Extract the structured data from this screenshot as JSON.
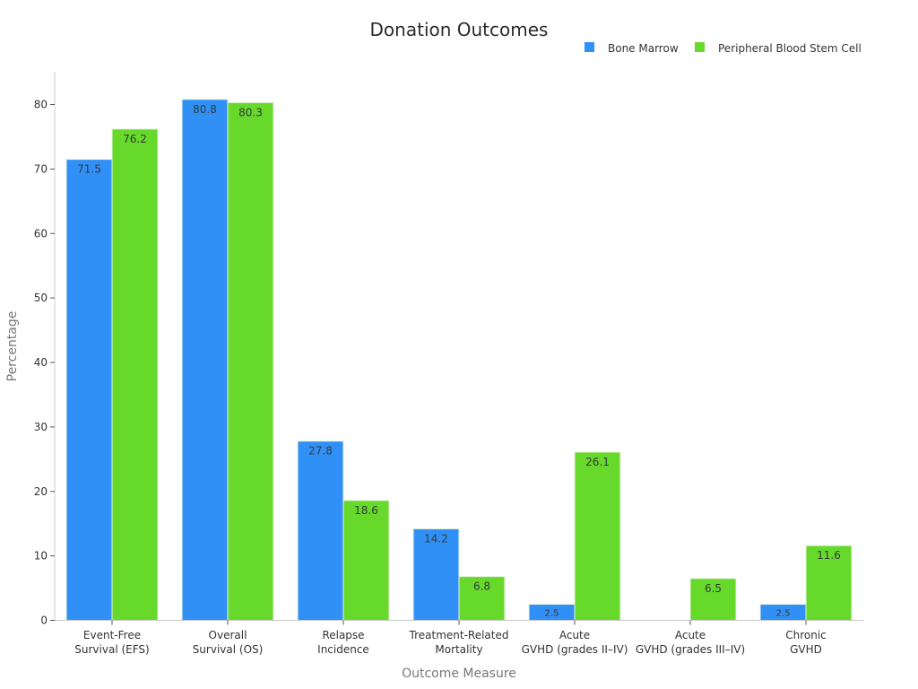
{
  "chart_data": {
    "type": "bar",
    "title": "Donation Outcomes",
    "xlabel": "Outcome Measure",
    "ylabel": "Percentage",
    "ylim": [
      0,
      85
    ],
    "yticks": [
      0,
      10,
      20,
      30,
      40,
      50,
      60,
      70,
      80
    ],
    "grid": false,
    "legend_position": "top-right",
    "categories": [
      [
        "Event-Free",
        "Survival (EFS)"
      ],
      [
        "Overall",
        "Survival (OS)"
      ],
      [
        "Relapse",
        "Incidence"
      ],
      [
        "Treatment-Related",
        "Mortality"
      ],
      [
        "Acute",
        "GVHD (grades II–IV)"
      ],
      [
        "Acute",
        "GVHD (grades III–IV)"
      ],
      [
        "Chronic",
        "GVHD"
      ]
    ],
    "series": [
      {
        "name": "Bone Marrow",
        "color": "#3090f6",
        "values": [
          71.5,
          80.8,
          27.8,
          14.2,
          2.5,
          null,
          2.5
        ],
        "labels": [
          "71.5",
          "80.8",
          "27.8",
          "14.2",
          "2.5",
          null,
          "2.5"
        ]
      },
      {
        "name": "Peripheral Blood Stem Cell",
        "color": "#66d92a",
        "values": [
          76.2,
          80.3,
          18.6,
          6.8,
          26.1,
          6.5,
          11.6
        ],
        "labels": [
          "76.2",
          "80.3",
          "18.6",
          "6.8",
          "26.1",
          "6.5",
          "11.6"
        ]
      }
    ]
  }
}
